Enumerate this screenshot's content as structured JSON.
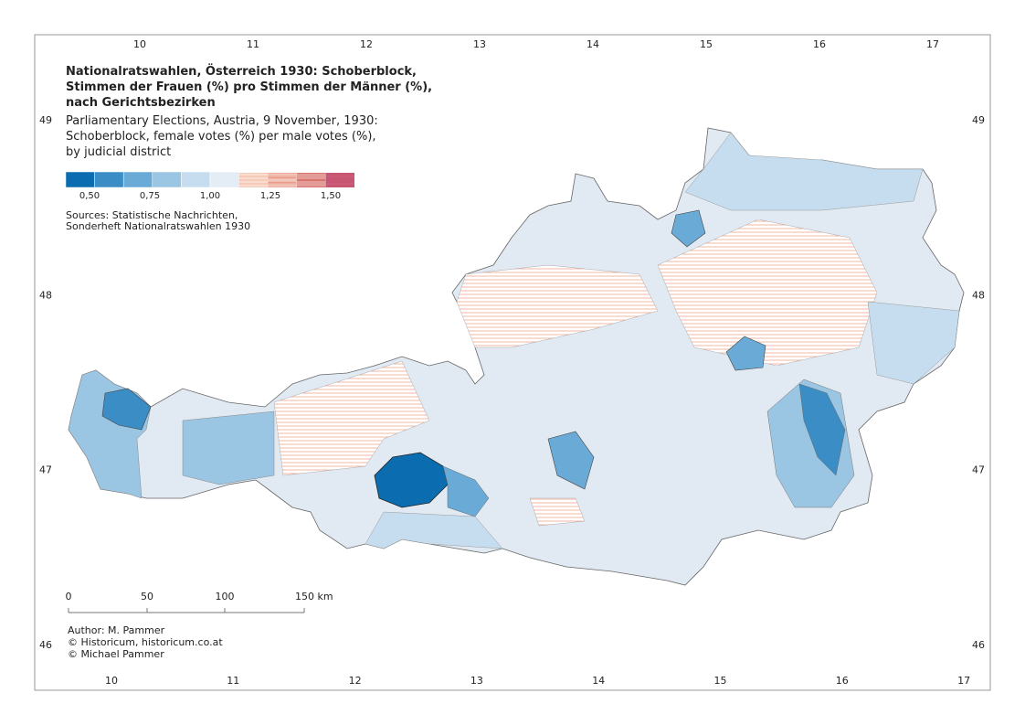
{
  "header": {
    "title": [
      "Nationalratswahlen, Österreich 1930: Schoberblock,",
      "Stimmen der Frauen (%) pro Stimmen der Männer (%),",
      "nach Gerichtsbezirken"
    ],
    "subtitle": [
      "Parliamentary Elections, Austria, 9 November, 1930:",
      "Schoberblock, female votes (%) per male votes (%),",
      "by judicial district"
    ]
  },
  "legend": {
    "swatches": [
      {
        "color": "#0b6cb0",
        "hatched": false
      },
      {
        "color": "#3a8dc5",
        "hatched": false
      },
      {
        "color": "#6aaad6",
        "hatched": false
      },
      {
        "color": "#9ac5e3",
        "hatched": false
      },
      {
        "color": "#c5ddee",
        "hatched": false
      },
      {
        "color": "#e4edf5",
        "hatched": false
      },
      {
        "color": "#f3b8a0",
        "hatched": true
      },
      {
        "color": "#e7907a",
        "hatched": true
      },
      {
        "color": "#d4605a",
        "hatched": true
      },
      {
        "color": "#b51e45",
        "hatched": true
      }
    ],
    "labels": [
      "0,50",
      "0,75",
      "1,00",
      "1,25",
      "1,50"
    ]
  },
  "sources": [
    "Sources: Statistische Nachrichten,",
    "Sonderheft Nationalratswahlen 1930"
  ],
  "scale": [
    "0",
    "50",
    "100",
    "150 km"
  ],
  "credits": [
    "Author: M. Pammer",
    "© Historicum, historicum.co.at",
    "© Michael Pammer"
  ],
  "graticule": {
    "top": [
      10,
      11,
      12,
      13,
      14,
      15,
      16,
      17
    ],
    "bottom": [
      10,
      11,
      12,
      13,
      14,
      15,
      16,
      17
    ],
    "left": [
      49,
      48,
      47,
      46
    ],
    "right": [
      49,
      48,
      47,
      46
    ]
  }
}
